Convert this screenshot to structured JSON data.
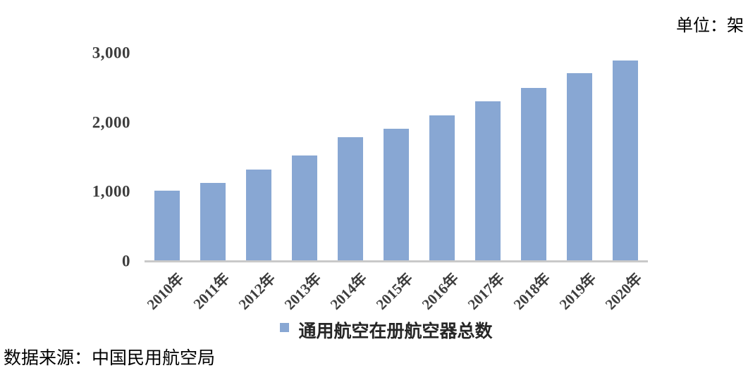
{
  "unit_label": "单位：架",
  "source_label": "数据来源：中国民用航空局",
  "legend": {
    "marker": "square",
    "position": "bottom"
  },
  "colors": {
    "bar": "#88a7d3",
    "axis_line": "#c9c9c9",
    "tick_text": "#3d3d3d",
    "legend_text": "#262626",
    "label_text": "#000000",
    "background": "#ffffff"
  },
  "chart_data": {
    "type": "bar",
    "title": "",
    "unit": "架",
    "categories": [
      "2010年",
      "2011年",
      "2012年",
      "2013年",
      "2014年",
      "2015年",
      "2016年",
      "2017年",
      "2018年",
      "2019年",
      "2020年"
    ],
    "series": [
      {
        "name": "通用航空在册航空器总数",
        "values": [
          1010,
          1124,
          1316,
          1519,
          1786,
          1904,
          2096,
          2297,
          2495,
          2707,
          2892
        ]
      }
    ],
    "xlabel": "",
    "ylabel": "",
    "ylim": [
      0,
      3000
    ],
    "yticks": [
      0,
      1000,
      2000,
      3000
    ],
    "ytick_labels": [
      "0",
      "1,000",
      "2,000",
      "3,000"
    ],
    "grid": false,
    "legend_position": "bottom",
    "x_label_rotation_deg": -45,
    "bar_color": "#88a7d3"
  }
}
